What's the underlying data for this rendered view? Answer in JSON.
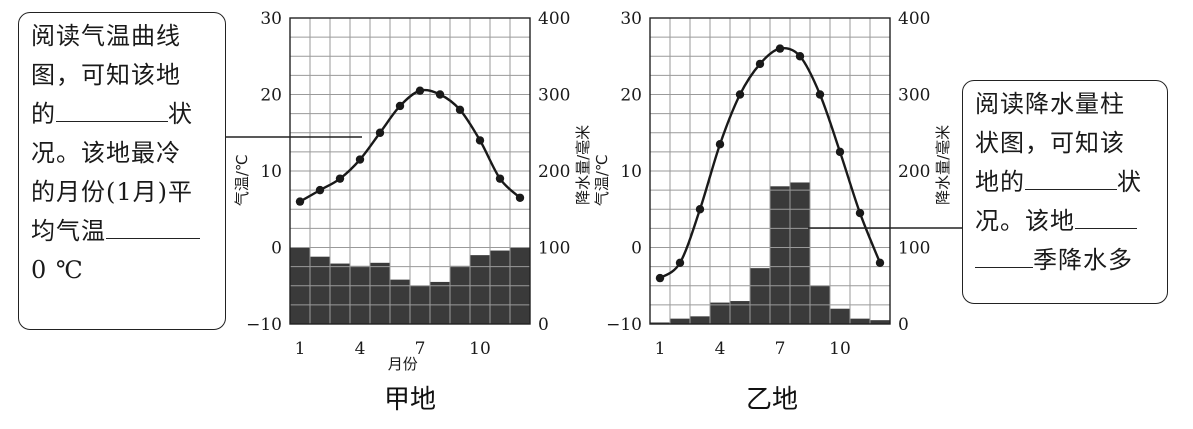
{
  "callout_left": {
    "lines": [
      "阅读气温曲线",
      "图，可知该地",
      "的",
      "状",
      "况。该地最冷",
      "的月份(1月)平",
      "均气温",
      "0 ℃"
    ]
  },
  "callout_right": {
    "lines": [
      "阅读降水量柱",
      "状图，可知该",
      "地的",
      "状",
      "况。该地",
      "季降水多"
    ]
  },
  "chart_data": [
    {
      "type": "bar+line",
      "title": "甲地",
      "xlabel": "月份",
      "ylabel_left": "气温/℃",
      "ylabel_right": "降水量/毫米",
      "x": [
        1,
        2,
        3,
        4,
        5,
        6,
        7,
        8,
        9,
        10,
        11,
        12
      ],
      "x_tick_labels": [
        "1",
        "4",
        "7",
        "10"
      ],
      "ylim_left": [
        -10,
        30
      ],
      "ylim_right": [
        0,
        400
      ],
      "y_left_ticks": [
        "30",
        "20",
        "10",
        "0",
        "−10"
      ],
      "y_right_ticks": [
        "400",
        "300",
        "200",
        "100",
        "0"
      ],
      "temperature": [
        6,
        7.5,
        9,
        11.5,
        15,
        18.5,
        20.5,
        20,
        18,
        14,
        9,
        6.5
      ],
      "precipitation": [
        100,
        88,
        79,
        76,
        80,
        58,
        50,
        55,
        76,
        90,
        96,
        100
      ],
      "grid": true
    },
    {
      "type": "bar+line",
      "title": "乙地",
      "xlabel": "",
      "ylabel_left": "气温/℃",
      "ylabel_right": "降水量/毫米",
      "x": [
        1,
        2,
        3,
        4,
        5,
        6,
        7,
        8,
        9,
        10,
        11,
        12
      ],
      "x_tick_labels": [
        "1",
        "4",
        "7",
        "10"
      ],
      "ylim_left": [
        -10,
        30
      ],
      "ylim_right": [
        0,
        400
      ],
      "y_left_ticks": [
        "30",
        "20",
        "10",
        "0",
        "−10"
      ],
      "y_right_ticks": [
        "400",
        "300",
        "200",
        "100",
        "0"
      ],
      "temperature": [
        -4,
        -2,
        5,
        13.5,
        20,
        24,
        26,
        25,
        20,
        12.5,
        4.5,
        -2
      ],
      "precipitation": [
        2,
        7,
        10,
        28,
        30,
        73,
        180,
        185,
        50,
        20,
        7,
        5
      ],
      "grid": true
    }
  ]
}
